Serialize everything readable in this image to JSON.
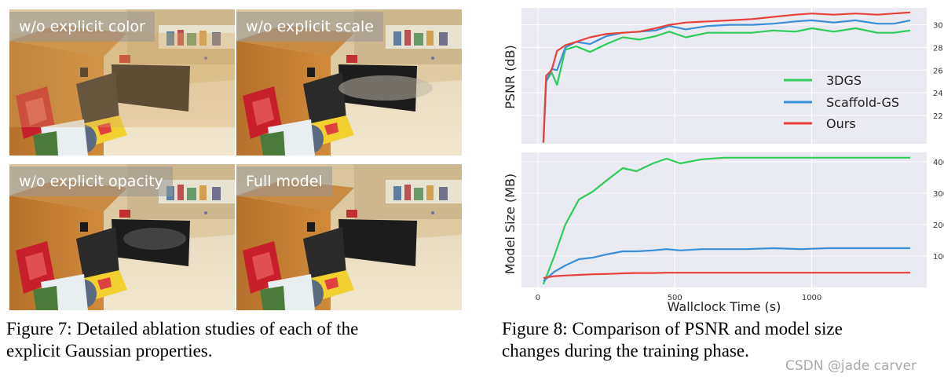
{
  "figure7": {
    "panels": [
      {
        "label": "w/o explicit color"
      },
      {
        "label": "w/o explicit scale"
      },
      {
        "label": "w/o explicit opacity"
      },
      {
        "label": "Full model"
      }
    ],
    "caption_line1": "Figure 7: Detailed ablation studies of each of the",
    "caption_line2": "explicit Gaussian properties."
  },
  "figure8": {
    "caption_line1": "Figure 8: Comparison of PSNR and model size",
    "caption_line2": "changes during the training phase."
  },
  "watermark": "CSDN @jade carver",
  "colors": {
    "3dgs": "#2ecc5a",
    "scaffold": "#3a8fd8",
    "ours": "#e8403a",
    "plot_bg": "#eaeaf2"
  },
  "chart_data": [
    {
      "type": "line",
      "ylabel": "PSNR (dB)",
      "xlabel": "",
      "xlim": [
        -60,
        1420
      ],
      "ylim": [
        19.5,
        31.5
      ],
      "yticks": [
        "22",
        "24",
        "26",
        "28",
        "30"
      ],
      "legend": "right",
      "grid": true,
      "series": [
        {
          "name": "3DGS",
          "color": "#2ecc5a",
          "x": [
            20,
            30,
            50,
            70,
            100,
            140,
            190,
            250,
            310,
            370,
            430,
            480,
            540,
            620,
            700,
            780,
            860,
            940,
            1000,
            1080,
            1160,
            1240,
            1300,
            1360
          ],
          "y": [
            19.6,
            25.0,
            25.8,
            24.7,
            27.8,
            28.1,
            27.6,
            28.3,
            28.9,
            28.7,
            29.0,
            29.4,
            28.9,
            29.3,
            29.3,
            29.3,
            29.5,
            29.4,
            29.7,
            29.4,
            29.7,
            29.3,
            29.3,
            29.5
          ]
        },
        {
          "name": "Scaffold-GS",
          "color": "#3a8fd8",
          "x": [
            20,
            30,
            50,
            70,
            100,
            140,
            190,
            250,
            310,
            370,
            430,
            480,
            540,
            620,
            700,
            780,
            860,
            940,
            1000,
            1080,
            1160,
            1240,
            1300,
            1360
          ],
          "y": [
            19.6,
            25.0,
            26.1,
            26.0,
            28.0,
            28.5,
            28.3,
            29.0,
            29.3,
            29.4,
            29.5,
            29.9,
            29.6,
            29.9,
            30.0,
            30.0,
            30.1,
            30.3,
            30.4,
            30.2,
            30.4,
            30.1,
            30.1,
            30.4
          ]
        },
        {
          "name": "Ours",
          "color": "#e8403a",
          "x": [
            20,
            30,
            50,
            70,
            100,
            140,
            190,
            250,
            310,
            370,
            430,
            480,
            540,
            620,
            700,
            780,
            860,
            940,
            1000,
            1080,
            1160,
            1240,
            1300,
            1360
          ],
          "y": [
            19.6,
            25.5,
            26.0,
            27.7,
            28.2,
            28.5,
            28.9,
            29.2,
            29.3,
            29.4,
            29.7,
            30.0,
            30.2,
            30.3,
            30.4,
            30.5,
            30.7,
            30.9,
            31.0,
            30.9,
            31.0,
            30.9,
            31.0,
            31.1
          ]
        }
      ]
    },
    {
      "type": "line",
      "ylabel": "Model Size (MB)",
      "xlabel": "Wallclock Time (s)",
      "xlim": [
        -60,
        1420
      ],
      "ylim": [
        0,
        430
      ],
      "xticks": [
        "0",
        "500",
        "1000"
      ],
      "yticks": [
        "100",
        "200",
        "300",
        "400"
      ],
      "grid": true,
      "series": [
        {
          "name": "3DGS",
          "color": "#2ecc5a",
          "x": [
            20,
            60,
            100,
            150,
            200,
            250,
            310,
            360,
            420,
            470,
            520,
            600,
            680,
            760,
            860,
            960,
            1060,
            1160,
            1260,
            1360
          ],
          "y": [
            10,
            100,
            200,
            280,
            305,
            340,
            380,
            370,
            395,
            410,
            395,
            408,
            413,
            413,
            413,
            413,
            413,
            413,
            413,
            413
          ]
        },
        {
          "name": "Scaffold-GS",
          "color": "#3a8fd8",
          "x": [
            20,
            60,
            100,
            150,
            200,
            250,
            310,
            360,
            420,
            470,
            520,
            600,
            680,
            760,
            860,
            960,
            1060,
            1160,
            1260,
            1360
          ],
          "y": [
            20,
            50,
            70,
            90,
            95,
            105,
            115,
            115,
            118,
            122,
            118,
            122,
            122,
            122,
            125,
            122,
            125,
            125,
            125,
            125
          ]
        },
        {
          "name": "Ours",
          "color": "#e8403a",
          "x": [
            20,
            60,
            100,
            150,
            200,
            250,
            310,
            360,
            420,
            470,
            520,
            600,
            680,
            760,
            860,
            960,
            1060,
            1160,
            1260,
            1360
          ],
          "y": [
            30,
            36,
            38,
            40,
            42,
            43,
            45,
            46,
            46,
            47,
            47,
            47,
            47,
            47,
            47,
            47,
            47,
            47,
            47,
            47
          ]
        }
      ]
    }
  ]
}
